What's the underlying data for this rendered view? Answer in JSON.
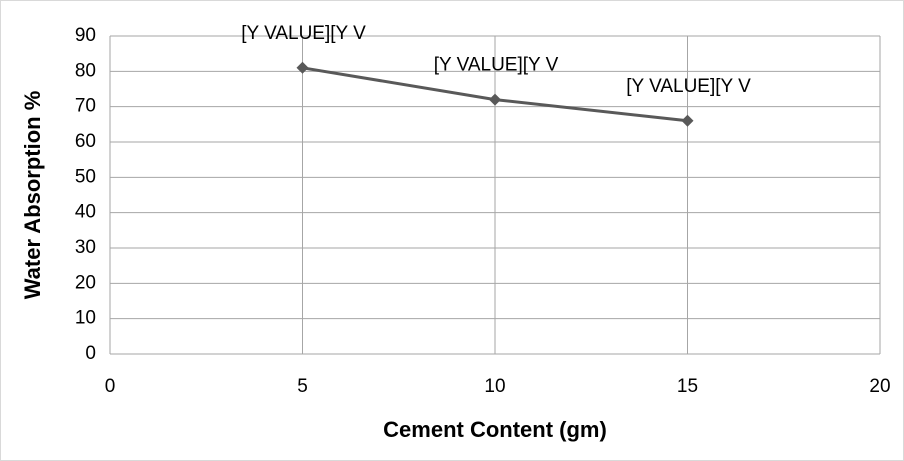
{
  "chart_data": {
    "type": "line",
    "x": [
      5,
      10,
      15
    ],
    "values": [
      81,
      72,
      66
    ],
    "value_labels": [
      "[Y VALUE][Y V",
      "[Y VALUE][Y V",
      "[Y VALUE][Y V"
    ],
    "color": "#595959",
    "xlabel": "Cement Content (gm)",
    "ylabel": "Water Absorption %",
    "xlim": [
      0,
      20
    ],
    "xticks": [
      0,
      5,
      10,
      15,
      20
    ],
    "ylim": [
      0,
      90
    ],
    "yticks": [
      0,
      10,
      20,
      30,
      40,
      50,
      60,
      70,
      80,
      90
    ],
    "grid": true
  }
}
